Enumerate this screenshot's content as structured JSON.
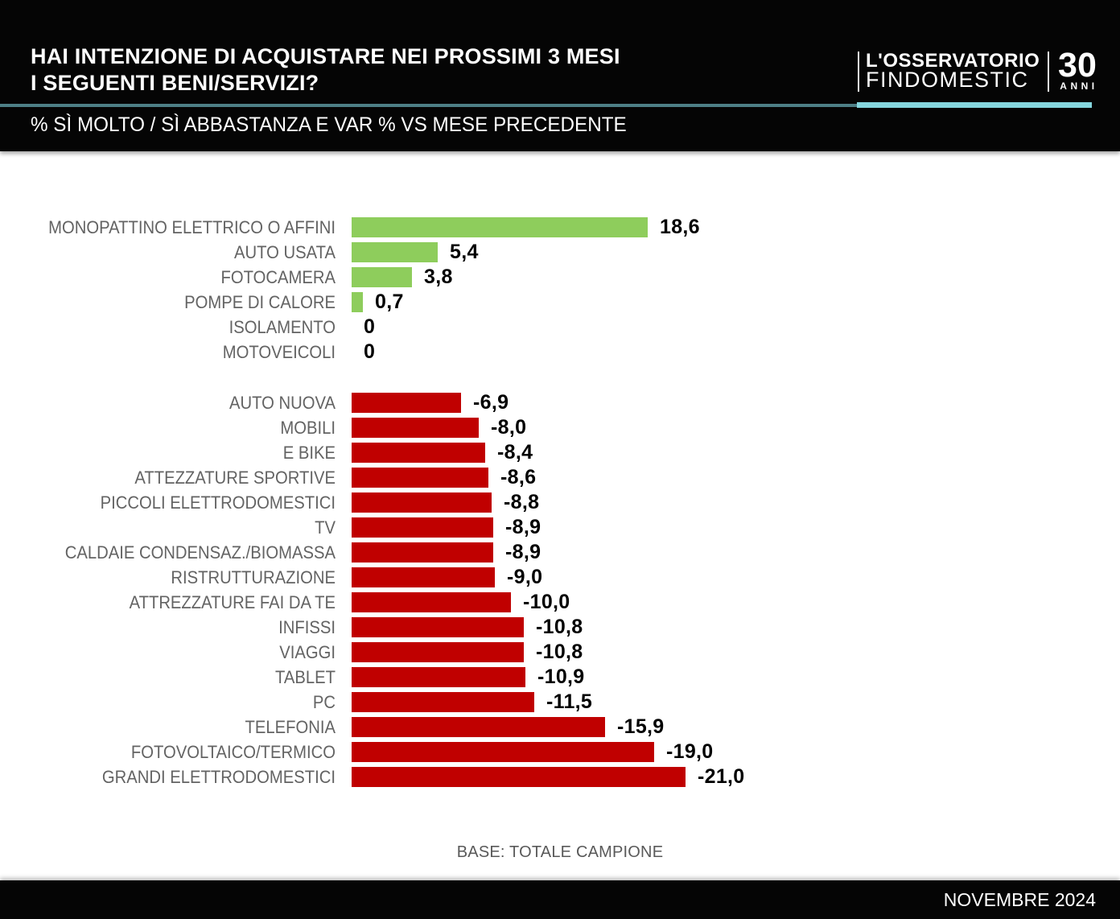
{
  "header": {
    "title_line1": "HAI INTENZIONE DI ACQUISTARE NEI PROSSIMI 3 MESI",
    "title_line2": "I SEGUENTI BENI/SERVIZI?",
    "subtitle": "% SÌ MOLTO / SÌ ABBASTANZA E VAR % VS MESE PRECEDENTE"
  },
  "logo": {
    "line1": "L'OSSERVATORIO",
    "line2": "FINDOMESTIC",
    "years_number": "30",
    "years_label": "ANNI"
  },
  "colors": {
    "positive_green": "#8ecd5c",
    "negative_red": "#c00000",
    "divider_dark_teal": "#4e7f86",
    "divider_light_teal": "#85d6de",
    "label_gray": "#636363",
    "header_black": "#050505"
  },
  "chart_data": {
    "type": "bar",
    "orientation": "horizontal",
    "title": "HAI INTENZIONE DI ACQUISTARE NEI PROSSIMI 3 MESI I SEGUENTI BENI/SERVIZI?",
    "subtitle": "% SÌ MOLTO / SÌ ABBASTANZA E VAR % VS MESE PRECEDENTE",
    "value_unit": "var % vs mese precedente",
    "xlim": [
      -21.0,
      18.6
    ],
    "grid": false,
    "legend": false,
    "groups": [
      {
        "name": "positive",
        "color": "#8ecd5c",
        "items": [
          {
            "label": "MONOPATTINO ELETTRICO O AFFINI",
            "value": 18.6,
            "display": "18,6"
          },
          {
            "label": "AUTO USATA",
            "value": 5.4,
            "display": "5,4"
          },
          {
            "label": "FOTOCAMERA",
            "value": 3.8,
            "display": "3,8"
          },
          {
            "label": "POMPE DI CALORE",
            "value": 0.7,
            "display": "0,7"
          },
          {
            "label": "ISOLAMENTO",
            "value": 0,
            "display": "0"
          },
          {
            "label": "MOTOVEICOLI",
            "value": 0,
            "display": "0"
          }
        ]
      },
      {
        "name": "negative",
        "color": "#c00000",
        "items": [
          {
            "label": "AUTO NUOVA",
            "value": -6.9,
            "display": "-6,9"
          },
          {
            "label": "MOBILI",
            "value": -8.0,
            "display": "-8,0"
          },
          {
            "label": "E BIKE",
            "value": -8.4,
            "display": "-8,4"
          },
          {
            "label": "ATTEZZATURE SPORTIVE",
            "value": -8.6,
            "display": "-8,6"
          },
          {
            "label": "PICCOLI ELETTRODOMESTICI",
            "value": -8.8,
            "display": "-8,8"
          },
          {
            "label": "TV",
            "value": -8.9,
            "display": "-8,9"
          },
          {
            "label": "CALDAIE CONDENSAZ./BIOMASSA",
            "value": -8.9,
            "display": "-8,9"
          },
          {
            "label": "RISTRUTTURAZIONE",
            "value": -9.0,
            "display": "-9,0"
          },
          {
            "label": "ATTREZZATURE FAI DA TE",
            "value": -10.0,
            "display": "-10,0"
          },
          {
            "label": "INFISSI",
            "value": -10.8,
            "display": "-10,8"
          },
          {
            "label": "VIAGGI",
            "value": -10.8,
            "display": "-10,8"
          },
          {
            "label": "TABLET",
            "value": -10.9,
            "display": "-10,9"
          },
          {
            "label": "PC",
            "value": -11.5,
            "display": "-11,5"
          },
          {
            "label": "TELEFONIA",
            "value": -15.9,
            "display": "-15,9"
          },
          {
            "label": "FOTOVOLTAICO/TERMICO",
            "value": -19.0,
            "display": "-19,0"
          },
          {
            "label": "GRANDI ELETTRODOMESTICI",
            "value": -21.0,
            "display": "-21,0"
          }
        ]
      }
    ]
  },
  "footer": {
    "base_note": "BASE: TOTALE CAMPIONE",
    "date": "NOVEMBRE 2024"
  }
}
